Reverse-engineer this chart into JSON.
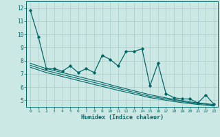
{
  "title": "",
  "xlabel": "Humidex (Indice chaleur)",
  "ylabel": "",
  "bg_color": "#cce8e4",
  "line_color": "#006666",
  "grid_color": "#aacccc",
  "xlim": [
    -0.5,
    23.5
  ],
  "ylim": [
    4.5,
    12.5
  ],
  "yticks": [
    5,
    6,
    7,
    8,
    9,
    10,
    11,
    12
  ],
  "xticks": [
    0,
    1,
    2,
    3,
    4,
    5,
    6,
    7,
    8,
    9,
    10,
    11,
    12,
    13,
    14,
    15,
    16,
    17,
    18,
    19,
    20,
    21,
    22,
    23
  ],
  "x": [
    0,
    1,
    2,
    3,
    4,
    5,
    6,
    7,
    8,
    9,
    10,
    11,
    12,
    13,
    14,
    15,
    16,
    17,
    18,
    19,
    20,
    21,
    22,
    23
  ],
  "y_main": [
    11.8,
    9.8,
    7.4,
    7.4,
    7.2,
    7.6,
    7.1,
    7.4,
    7.1,
    8.4,
    8.1,
    7.6,
    8.7,
    8.7,
    8.9,
    6.1,
    7.8,
    5.5,
    5.2,
    5.1,
    5.1,
    4.8,
    5.4,
    4.7
  ],
  "y_trend1": [
    7.65,
    7.45,
    7.25,
    7.1,
    6.95,
    6.8,
    6.65,
    6.5,
    6.35,
    6.2,
    6.05,
    5.9,
    5.75,
    5.6,
    5.45,
    5.3,
    5.2,
    5.1,
    5.0,
    4.9,
    4.82,
    4.75,
    4.7,
    4.62
  ],
  "y_trend2": [
    7.8,
    7.6,
    7.4,
    7.25,
    7.1,
    6.95,
    6.8,
    6.65,
    6.5,
    6.35,
    6.18,
    6.02,
    5.87,
    5.72,
    5.57,
    5.42,
    5.3,
    5.18,
    5.07,
    4.97,
    4.88,
    4.8,
    4.75,
    4.67
  ],
  "y_trend3": [
    7.5,
    7.3,
    7.1,
    6.95,
    6.8,
    6.65,
    6.5,
    6.35,
    6.2,
    6.05,
    5.9,
    5.75,
    5.62,
    5.48,
    5.34,
    5.2,
    5.1,
    5.0,
    4.9,
    4.82,
    4.75,
    4.68,
    4.63,
    4.56
  ]
}
